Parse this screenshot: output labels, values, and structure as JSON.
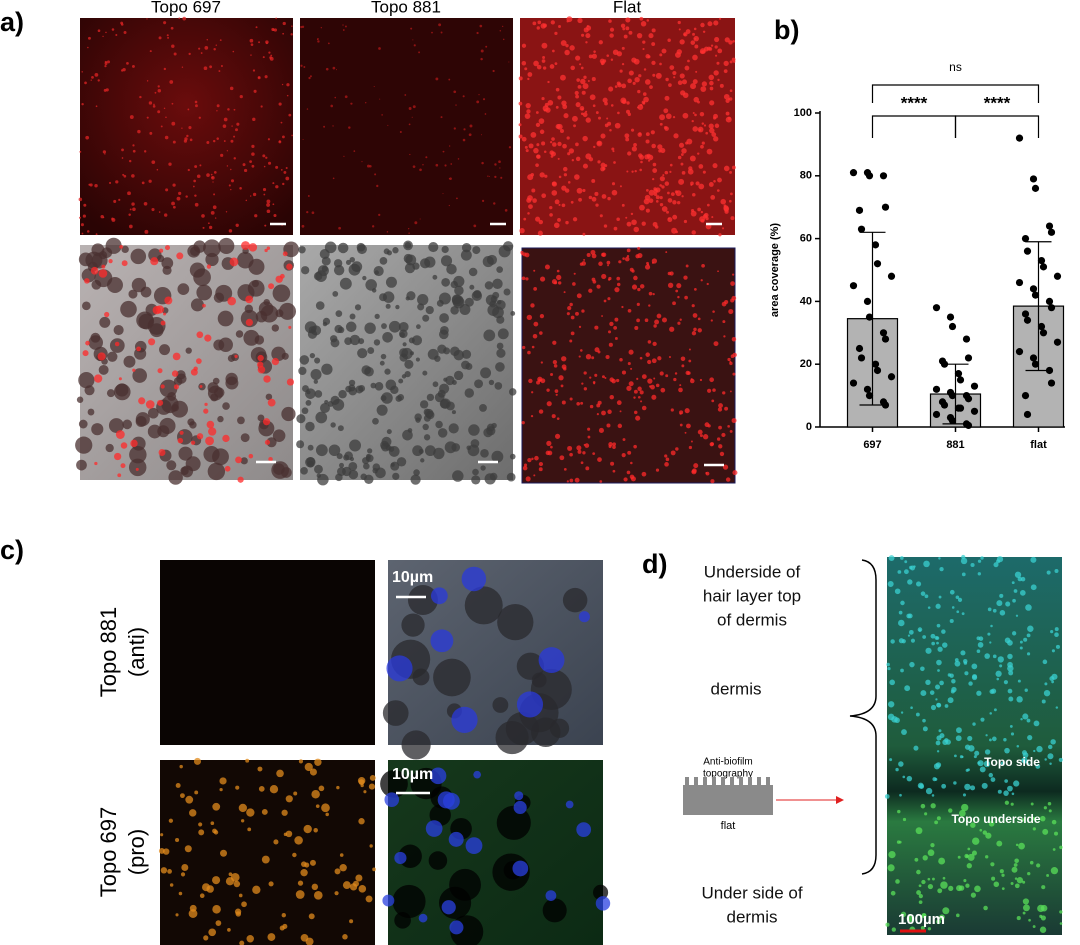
{
  "panels": {
    "a": {
      "label": "a)",
      "columns": [
        "Topo 697",
        "Topo 881",
        "Flat"
      ]
    },
    "b": {
      "label": "b)"
    },
    "c": {
      "label": "c)",
      "rows": [
        {
          "line1": "Topo 881",
          "line2": "(anti)",
          "scale": "10µm"
        },
        {
          "line1": "Topo 697",
          "line2": "(pro)",
          "scale": "10µm"
        }
      ]
    },
    "d": {
      "label": "d)",
      "top": [
        "Underside of",
        "hair layer top",
        "of dermis"
      ],
      "middle": "dermis",
      "schematic": [
        "Anti-biofilm",
        "topography",
        "flat"
      ],
      "bottom": [
        "Under side of",
        "dermis"
      ],
      "image_labels": [
        "Topo side",
        "Topo underside"
      ],
      "scale": "100µm"
    }
  },
  "chart_data": {
    "type": "bar",
    "ylabel": "area coverage (%)",
    "categories": [
      "697",
      "881",
      "flat"
    ],
    "values": [
      34.5,
      10.5,
      38.5
    ],
    "errors": [
      27.5,
      9.5,
      20.5
    ],
    "color": "#b3b3b3",
    "points": [
      [
        81,
        81,
        80,
        80,
        70,
        69,
        63,
        58,
        52,
        48,
        45,
        40,
        35,
        30,
        28,
        25,
        22,
        20,
        18,
        16,
        14,
        12,
        10,
        8,
        7
      ],
      [
        38,
        35,
        32,
        28,
        22,
        21,
        20,
        17,
        15,
        13,
        12,
        11,
        10,
        10,
        9,
        8,
        7,
        6,
        6,
        5,
        4,
        3,
        2,
        1,
        0.5
      ],
      [
        92,
        79,
        76,
        64,
        62,
        60,
        56,
        53,
        51,
        48,
        46,
        44,
        42,
        40,
        38,
        36,
        34,
        32,
        30,
        27,
        24,
        22,
        20,
        18,
        14,
        10,
        4
      ]
    ],
    "annotations": [
      "ns",
      "****",
      "****"
    ],
    "ylim": [
      0,
      100
    ],
    "yticks": [
      0,
      20,
      40,
      60,
      80,
      100
    ]
  }
}
